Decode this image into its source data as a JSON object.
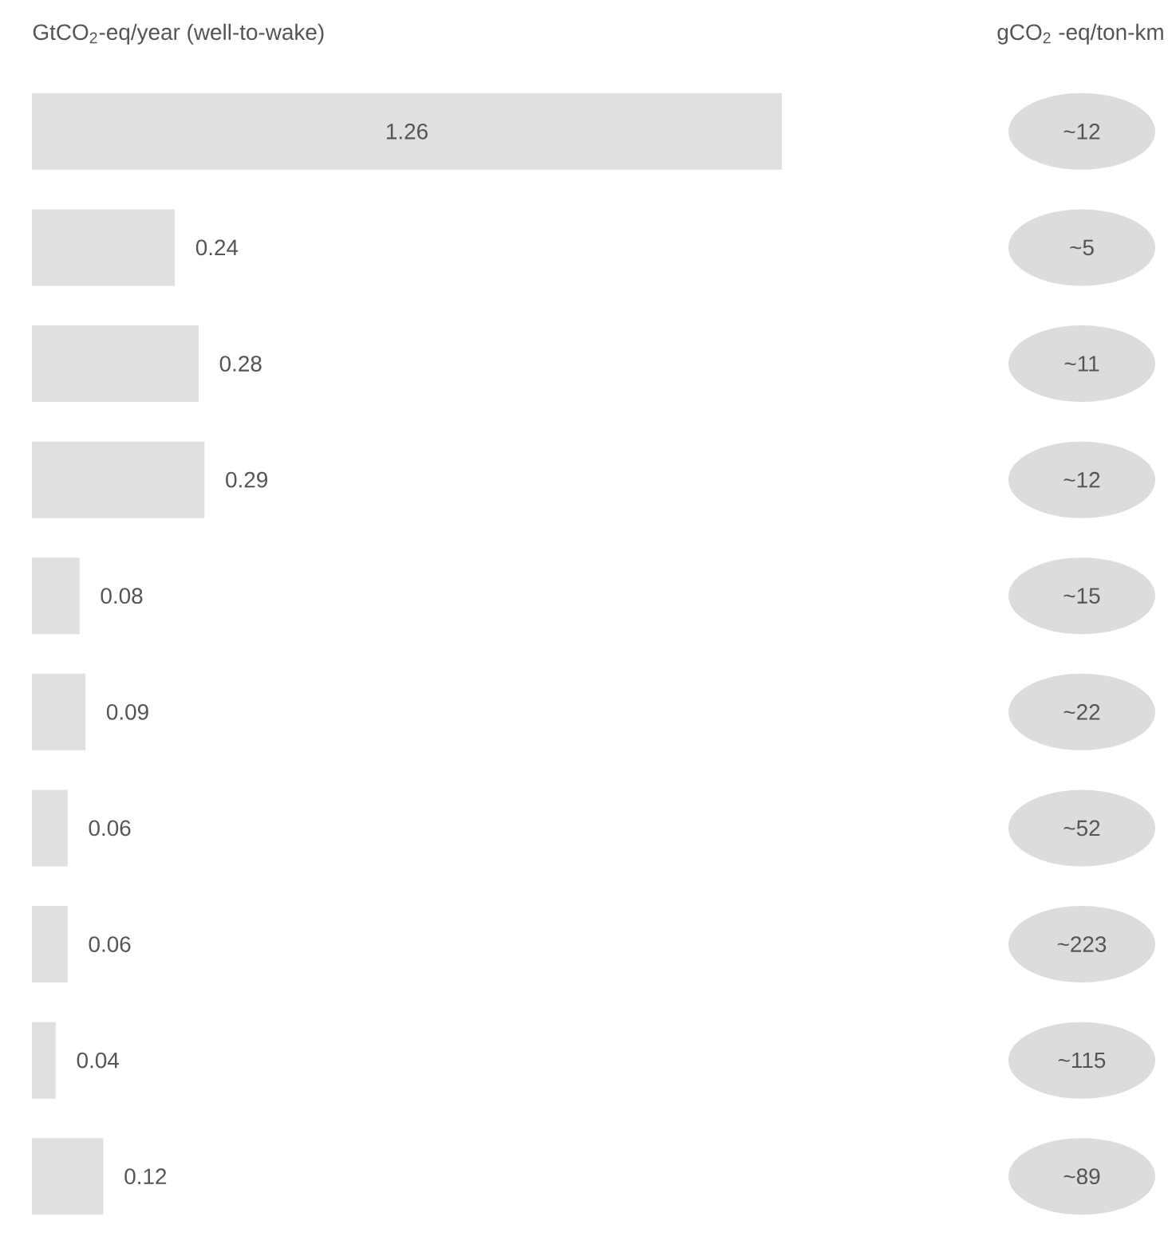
{
  "chart_data": [
    {
      "type": "bar",
      "orientation": "horizontal",
      "title": "GtCO$_{2}$-eq/year (well-to-wake)",
      "categories": [
        null,
        null,
        null,
        null,
        null,
        null,
        null,
        null,
        null,
        null
      ],
      "values": [
        1.26,
        0.24,
        0.28,
        0.29,
        0.08,
        0.09,
        0.06,
        0.06,
        0.04,
        0.12
      ],
      "color": "#e0e0e0",
      "data_labels": true
    },
    {
      "type": "other",
      "title": "gCO$_{2}$ -eq/ton-km",
      "annotations": [
        "~12",
        "~5",
        "~11",
        "~12",
        "~15",
        "~22",
        "~52",
        "~223",
        "~115",
        "~89"
      ]
    }
  ]
}
